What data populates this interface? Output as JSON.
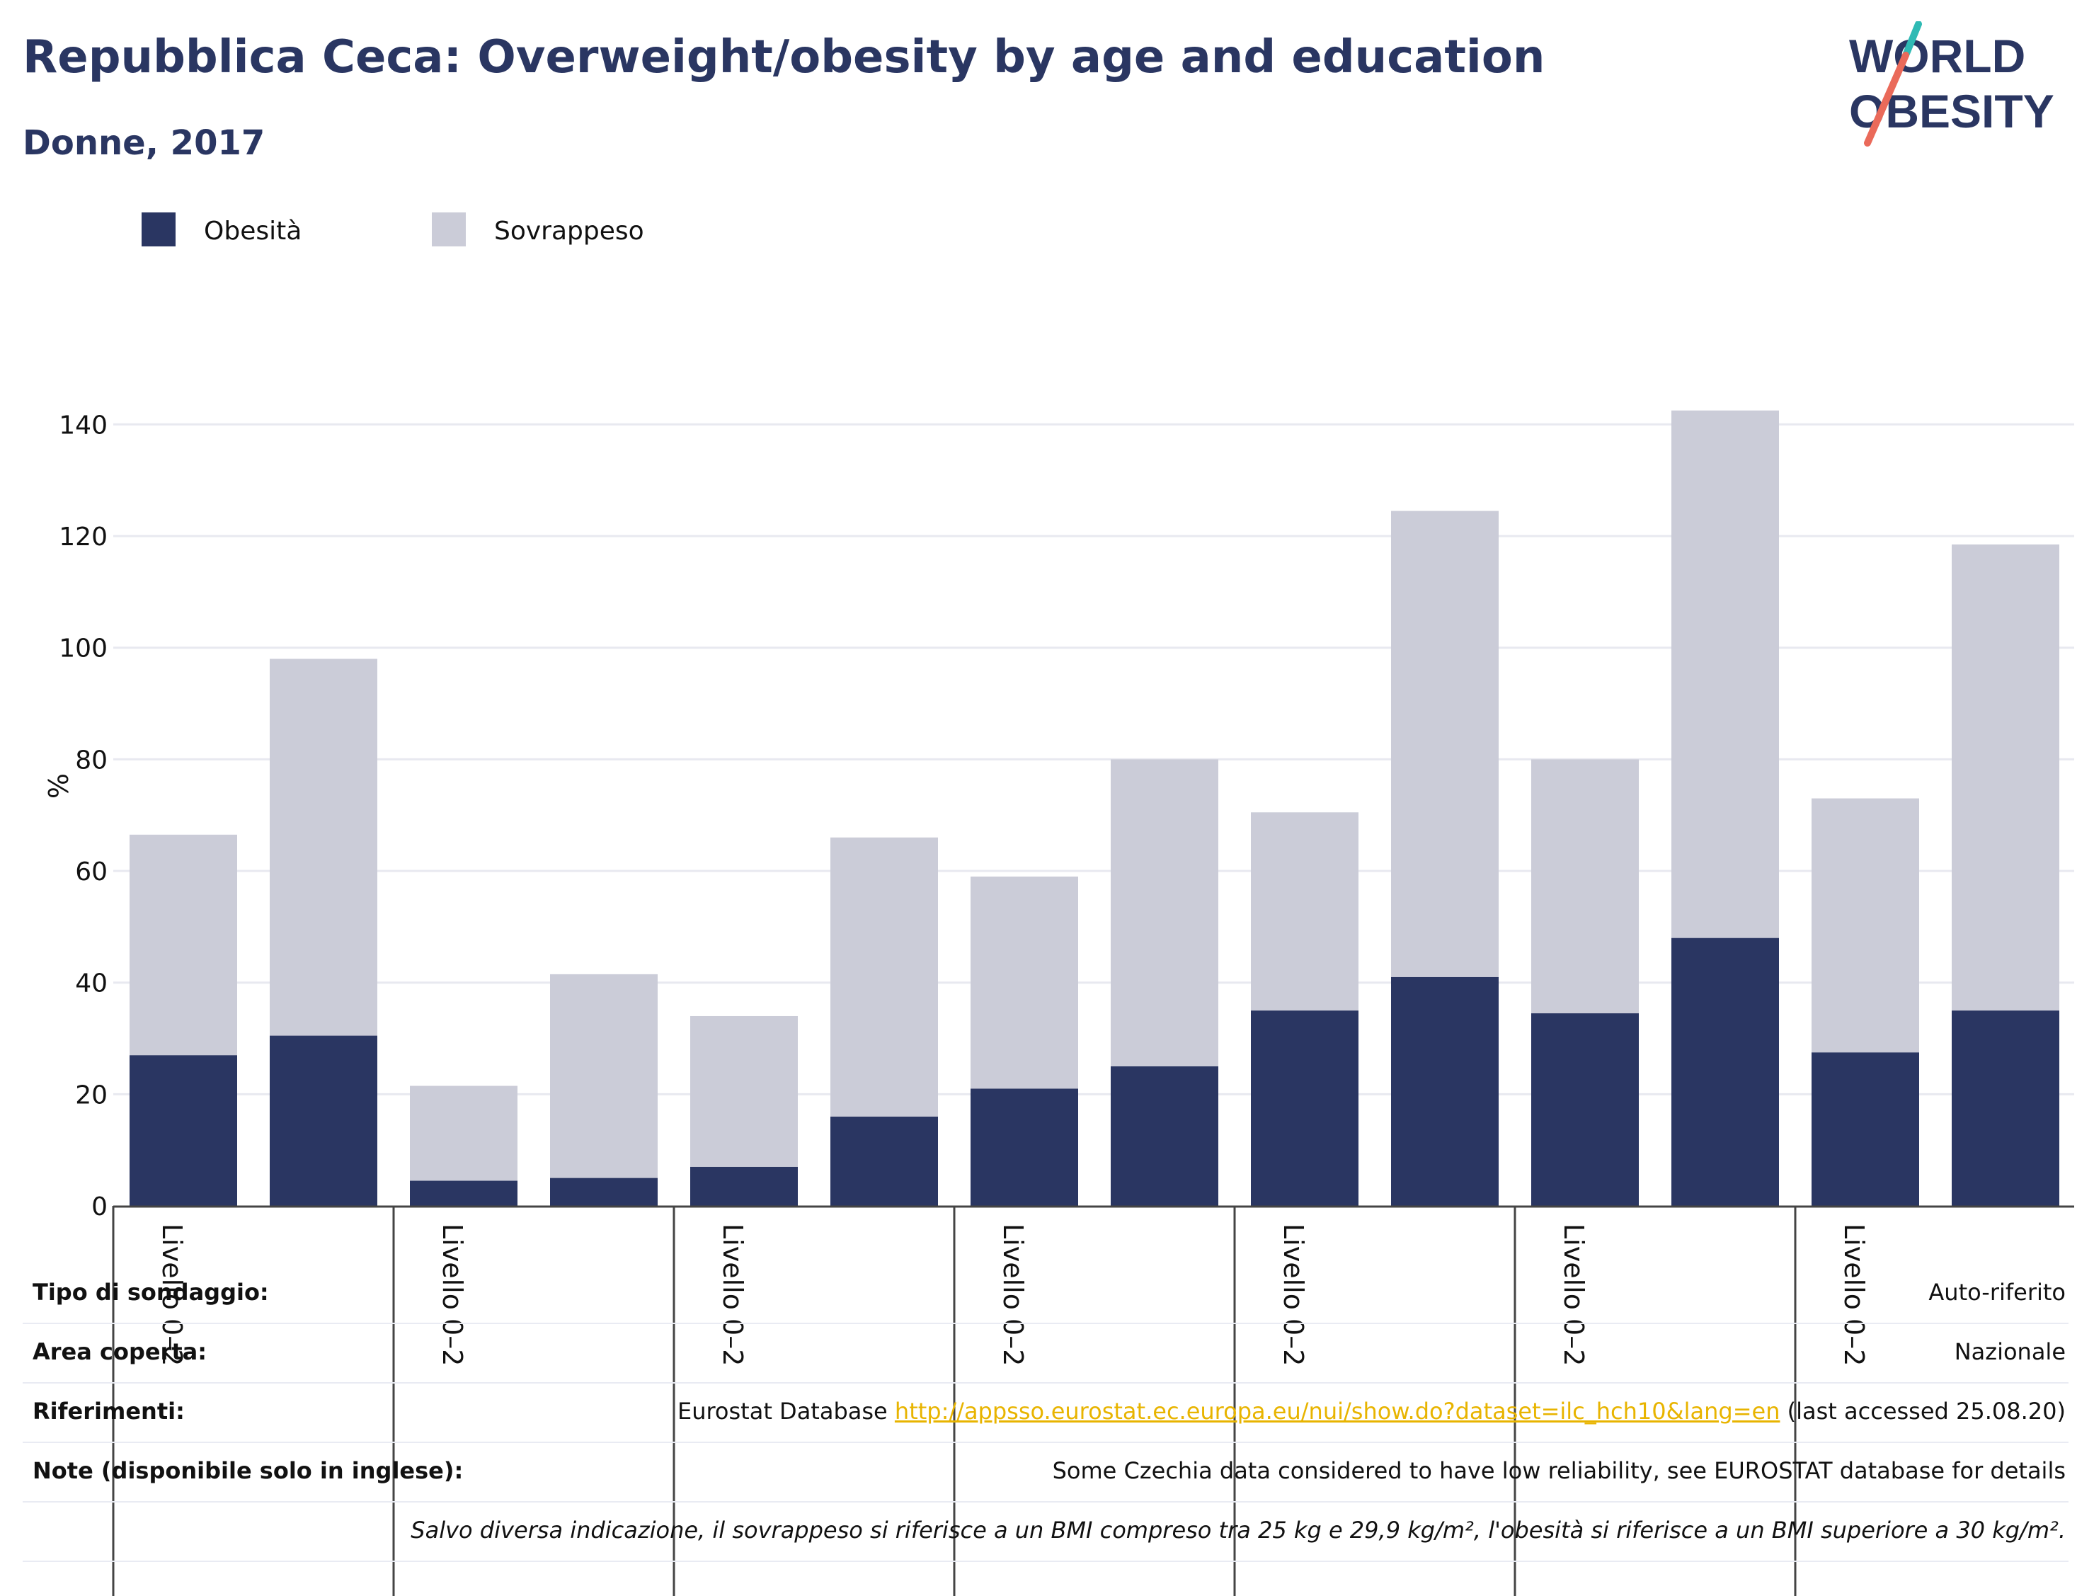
{
  "header": {
    "title": "Repubblica Ceca: Overweight/obesity by age and education",
    "subtitle": "Donne, 2017"
  },
  "logo": {
    "line1": "WORLD",
    "line2": "OBESITY"
  },
  "colors": {
    "obesity": "#2a3662",
    "overweight": "#cbccd8",
    "title": "#2a3662",
    "link": "#e8b400"
  },
  "chart_data": {
    "type": "bar",
    "stacked": true,
    "ylabel": "%",
    "ylim": [
      0,
      145
    ],
    "yticks": [
      0,
      20,
      40,
      60,
      80,
      100,
      120,
      140
    ],
    "grid": true,
    "legend_position": "top-left",
    "group_labels": [
      "Livello 0–2",
      "Livello 0–2",
      "Livello 0–2",
      "Livello 0–2",
      "Livello 0–2",
      "Livello 0–2",
      "Livello 0–2"
    ],
    "bar_count": 14,
    "series": [
      {
        "name": "Obesità",
        "values": [
          27,
          30.5,
          4.5,
          5,
          7,
          16,
          21,
          25,
          35,
          41,
          34.5,
          48,
          27.5,
          35
        ]
      },
      {
        "name": "Sovrappeso",
        "values": [
          39.5,
          67.5,
          17,
          36.5,
          27,
          50,
          38,
          55,
          35.5,
          83.5,
          45.5,
          94.5,
          45.5,
          83.5
        ]
      }
    ]
  },
  "meta": [
    {
      "key": "Tipo di sondaggio:",
      "value": "Auto-riferito"
    },
    {
      "key": "Area coperta:",
      "value": "Nazionale"
    },
    {
      "key": "Riferimenti:",
      "value_prefix": "Eurostat Database ",
      "value_link": "http://appsso.eurostat.ec.europa.eu/nui/show.do?dataset=ilc_hch10&lang=en",
      "value_suffix": " (last accessed 25.08.20)"
    },
    {
      "key": "Note (disponibile solo in inglese):",
      "value": "Some Czechia data considered to have low reliability, see EUROSTAT database for details"
    },
    {
      "key": "",
      "value": "Salvo diversa indicazione, il sovrappeso si riferisce a un BMI compreso tra 25 kg e 29,9 kg/m², l'obesità si riferisce a un BMI superiore a 30 kg/m²."
    }
  ]
}
